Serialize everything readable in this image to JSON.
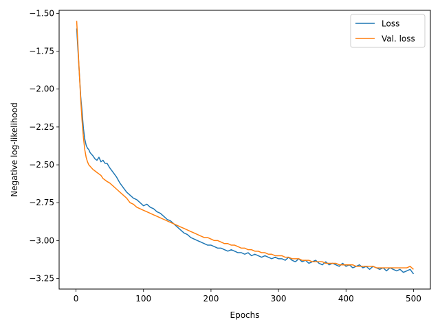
{
  "chart_data": {
    "type": "line",
    "title": "",
    "xlabel": "Epochs",
    "ylabel": "Negative log-likelihood",
    "xlim": [
      -25,
      525
    ],
    "ylim": [
      -3.32,
      -1.48
    ],
    "xticks": [
      0,
      100,
      200,
      300,
      400,
      500
    ],
    "yticks": [
      -1.5,
      -1.75,
      -2.0,
      -2.25,
      -2.5,
      -2.75,
      -3.0,
      -3.25
    ],
    "xtick_labels": [
      "0",
      "100",
      "200",
      "300",
      "400",
      "500"
    ],
    "ytick_labels": [
      "−1.50",
      "−1.75",
      "−2.00",
      "−2.25",
      "−2.50",
      "−2.75",
      "−3.00",
      "−3.25"
    ],
    "grid": false,
    "legend": "top-right",
    "series": [
      {
        "name": "Loss",
        "color": "#1f77b4",
        "x": [
          1,
          3,
          5,
          7,
          9,
          11,
          13,
          15,
          17,
          19,
          21,
          23,
          25,
          28,
          31,
          34,
          37,
          40,
          43,
          46,
          50,
          55,
          60,
          65,
          70,
          75,
          80,
          85,
          90,
          95,
          100,
          105,
          110,
          115,
          120,
          125,
          130,
          135,
          140,
          145,
          150,
          155,
          160,
          165,
          170,
          175,
          180,
          185,
          190,
          195,
          200,
          205,
          210,
          215,
          220,
          225,
          230,
          235,
          240,
          245,
          250,
          255,
          260,
          265,
          270,
          275,
          280,
          285,
          290,
          295,
          300,
          305,
          310,
          315,
          320,
          325,
          330,
          335,
          340,
          345,
          350,
          355,
          360,
          365,
          370,
          375,
          380,
          385,
          390,
          395,
          400,
          405,
          410,
          415,
          420,
          425,
          430,
          435,
          440,
          445,
          450,
          455,
          460,
          465,
          470,
          475,
          480,
          485,
          490,
          495,
          500
        ],
        "y": [
          -1.6,
          -1.75,
          -1.9,
          -2.05,
          -2.15,
          -2.26,
          -2.33,
          -2.37,
          -2.39,
          -2.4,
          -2.42,
          -2.43,
          -2.44,
          -2.46,
          -2.47,
          -2.45,
          -2.48,
          -2.47,
          -2.49,
          -2.49,
          -2.52,
          -2.55,
          -2.58,
          -2.62,
          -2.65,
          -2.68,
          -2.7,
          -2.72,
          -2.73,
          -2.75,
          -2.77,
          -2.76,
          -2.78,
          -2.79,
          -2.81,
          -2.82,
          -2.84,
          -2.86,
          -2.87,
          -2.89,
          -2.91,
          -2.93,
          -2.95,
          -2.96,
          -2.98,
          -2.99,
          -3.0,
          -3.01,
          -3.02,
          -3.03,
          -3.03,
          -3.04,
          -3.05,
          -3.05,
          -3.06,
          -3.07,
          -3.06,
          -3.07,
          -3.08,
          -3.08,
          -3.09,
          -3.08,
          -3.1,
          -3.09,
          -3.1,
          -3.11,
          -3.1,
          -3.11,
          -3.12,
          -3.11,
          -3.12,
          -3.12,
          -3.13,
          -3.11,
          -3.13,
          -3.14,
          -3.12,
          -3.14,
          -3.13,
          -3.15,
          -3.14,
          -3.13,
          -3.15,
          -3.16,
          -3.14,
          -3.16,
          -3.15,
          -3.16,
          -3.17,
          -3.15,
          -3.17,
          -3.16,
          -3.18,
          -3.17,
          -3.16,
          -3.18,
          -3.17,
          -3.19,
          -3.17,
          -3.18,
          -3.19,
          -3.18,
          -3.2,
          -3.18,
          -3.19,
          -3.2,
          -3.19,
          -3.21,
          -3.2,
          -3.19,
          -3.22
        ]
      },
      {
        "name": "Val. loss",
        "color": "#ff7f0e",
        "x": [
          1,
          3,
          5,
          7,
          9,
          11,
          13,
          15,
          17,
          19,
          21,
          23,
          25,
          28,
          31,
          34,
          37,
          40,
          43,
          46,
          50,
          55,
          60,
          65,
          70,
          75,
          80,
          85,
          90,
          95,
          100,
          105,
          110,
          115,
          120,
          125,
          130,
          135,
          140,
          145,
          150,
          155,
          160,
          165,
          170,
          175,
          180,
          185,
          190,
          195,
          200,
          205,
          210,
          215,
          220,
          225,
          230,
          235,
          240,
          245,
          250,
          255,
          260,
          265,
          270,
          275,
          280,
          285,
          290,
          295,
          300,
          305,
          310,
          315,
          320,
          325,
          330,
          335,
          340,
          345,
          350,
          355,
          360,
          365,
          370,
          375,
          380,
          385,
          390,
          395,
          400,
          405,
          410,
          415,
          420,
          425,
          430,
          435,
          440,
          445,
          450,
          455,
          460,
          465,
          470,
          475,
          480,
          485,
          490,
          495,
          500
        ],
        "y": [
          -1.55,
          -1.72,
          -1.9,
          -2.07,
          -2.21,
          -2.32,
          -2.4,
          -2.45,
          -2.48,
          -2.5,
          -2.51,
          -2.52,
          -2.53,
          -2.54,
          -2.55,
          -2.56,
          -2.57,
          -2.59,
          -2.6,
          -2.61,
          -2.62,
          -2.64,
          -2.66,
          -2.68,
          -2.7,
          -2.72,
          -2.75,
          -2.76,
          -2.78,
          -2.79,
          -2.8,
          -2.81,
          -2.82,
          -2.83,
          -2.84,
          -2.85,
          -2.86,
          -2.87,
          -2.88,
          -2.89,
          -2.9,
          -2.91,
          -2.92,
          -2.93,
          -2.94,
          -2.95,
          -2.96,
          -2.97,
          -2.98,
          -2.98,
          -2.99,
          -3.0,
          -3.0,
          -3.01,
          -3.02,
          -3.02,
          -3.03,
          -3.03,
          -3.04,
          -3.05,
          -3.05,
          -3.06,
          -3.06,
          -3.07,
          -3.07,
          -3.08,
          -3.08,
          -3.09,
          -3.09,
          -3.1,
          -3.1,
          -3.1,
          -3.11,
          -3.11,
          -3.12,
          -3.12,
          -3.12,
          -3.13,
          -3.13,
          -3.13,
          -3.14,
          -3.14,
          -3.14,
          -3.14,
          -3.15,
          -3.15,
          -3.15,
          -3.15,
          -3.16,
          -3.16,
          -3.16,
          -3.16,
          -3.16,
          -3.17,
          -3.17,
          -3.17,
          -3.17,
          -3.17,
          -3.17,
          -3.18,
          -3.18,
          -3.18,
          -3.18,
          -3.18,
          -3.18,
          -3.18,
          -3.18,
          -3.18,
          -3.18,
          -3.17,
          -3.19
        ]
      }
    ]
  }
}
